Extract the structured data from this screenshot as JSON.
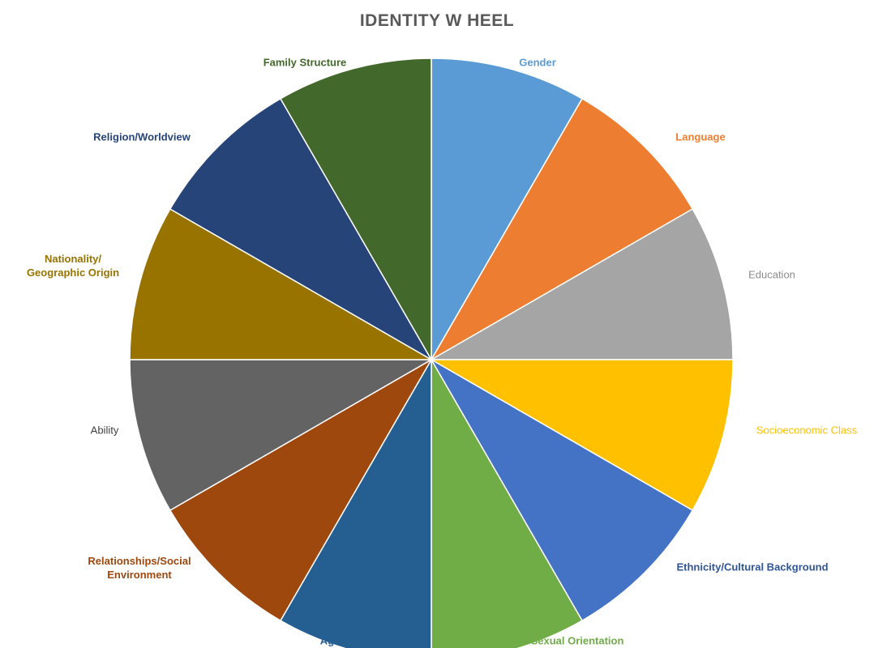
{
  "chart_data": {
    "type": "pie",
    "title": "IDENTITY W HEEL",
    "categories": [
      "Gender",
      "Language",
      "Education",
      "Socioeconomic Class",
      "Ethnicity/Cultural Background",
      "Sexual Orientation",
      "Age",
      "Relationships/Social Environment",
      "Ability",
      "Nationality/ Geographic Origin",
      "Religion/Worldview",
      "Family Structure"
    ],
    "label_lines": [
      [
        "Gender"
      ],
      [
        "Language"
      ],
      [
        "Education"
      ],
      [
        "Socioeconomic Class"
      ],
      [
        "Ethnicity/Cultural Background"
      ],
      [
        "Sexual Orientation"
      ],
      [
        "Age"
      ],
      [
        "Relationships/Social",
        "Environment"
      ],
      [
        "Ability"
      ],
      [
        "Nationality/",
        "Geographic Origin"
      ],
      [
        "Religion/Worldview"
      ],
      [
        "Family Structure"
      ]
    ],
    "values": [
      1,
      1,
      1,
      1,
      1,
      1,
      1,
      1,
      1,
      1,
      1,
      1
    ],
    "colors": [
      "#5b9bd5",
      "#ed7d31",
      "#a5a5a5",
      "#ffc000",
      "#4472c4",
      "#70ad47",
      "#255e91",
      "#9e480e",
      "#636363",
      "#997300",
      "#264478",
      "#43682b"
    ],
    "label_colors": [
      "#5b9bd5",
      "#ed7d31",
      "#8c8c8c",
      "#ffc000",
      "#2f5597",
      "#70ad47",
      "#255e91",
      "#9e480e",
      "#404040",
      "#997300",
      "#264478",
      "#43682b"
    ],
    "start_angle": "12 o'clock",
    "direction": "clockwise",
    "legend": "none",
    "labels": "outside each slice"
  }
}
